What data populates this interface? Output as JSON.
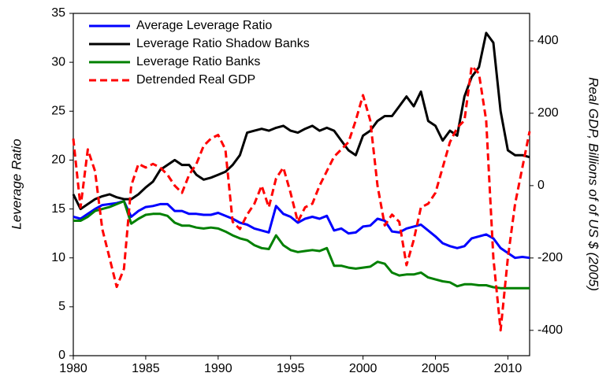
{
  "chart_data": {
    "type": "line",
    "y_label": "Leverage Ratio",
    "y2_label": "Real GDP, Billions of of US $ (2005)",
    "x": [
      1980,
      1980.5,
      1981,
      1981.5,
      1982,
      1982.5,
      1983,
      1983.5,
      1984,
      1984.5,
      1985,
      1985.5,
      1986,
      1986.5,
      1987,
      1987.5,
      1988,
      1988.5,
      1989,
      1989.5,
      1990,
      1990.5,
      1991,
      1991.5,
      1992,
      1992.5,
      1993,
      1993.5,
      1994,
      1994.5,
      1995,
      1995.5,
      1996,
      1996.5,
      1997,
      1997.5,
      1998,
      1998.5,
      1999,
      1999.5,
      2000,
      2000.5,
      2001,
      2001.5,
      2002,
      2002.5,
      2003,
      2003.5,
      2004,
      2004.5,
      2005,
      2005.5,
      2006,
      2006.5,
      2007,
      2007.5,
      2008,
      2008.5,
      2009,
      2009.5,
      2010,
      2010.5,
      2011,
      2011.5
    ],
    "xlim": [
      1980,
      2011.5
    ],
    "xticks": [
      1980,
      1985,
      1990,
      1995,
      2000,
      2005,
      2010
    ],
    "ylim": [
      0,
      35
    ],
    "yticks": [
      0,
      5,
      10,
      15,
      20,
      25,
      30,
      35
    ],
    "y2lim": [
      -470,
      476
    ],
    "y2ticks": [
      -400,
      -200,
      0,
      200,
      400
    ],
    "legend": "upper left",
    "series": [
      {
        "name": "Average Leverage Ratio",
        "color": "#0000ff",
        "linestyle": "solid",
        "values": [
          14.2,
          14.0,
          14.5,
          15.0,
          15.4,
          15.5,
          15.6,
          15.8,
          14.2,
          14.8,
          15.2,
          15.3,
          15.5,
          15.5,
          14.8,
          14.8,
          14.5,
          14.5,
          14.4,
          14.4,
          14.6,
          14.3,
          14.0,
          13.6,
          13.4,
          13.0,
          12.8,
          12.6,
          15.3,
          14.5,
          14.2,
          13.6,
          14.0,
          14.2,
          14.0,
          14.3,
          12.8,
          13.0,
          12.5,
          12.6,
          13.2,
          13.3,
          14.0,
          13.8,
          12.7,
          12.6,
          13.0,
          13.2,
          13.4,
          12.8,
          12.2,
          11.5,
          11.2,
          11.0,
          11.2,
          12.0,
          12.2,
          12.4,
          12.0,
          11.0,
          10.5,
          10.0,
          10.1,
          10.0
        ]
      },
      {
        "name": "Leverage Ratio Shadow Banks",
        "color": "#000000",
        "linestyle": "solid",
        "values": [
          16.5,
          15.0,
          15.5,
          16.0,
          16.3,
          16.5,
          16.2,
          16.0,
          16.0,
          16.5,
          17.2,
          17.8,
          19.0,
          19.5,
          20.0,
          19.5,
          19.5,
          18.5,
          18.0,
          18.2,
          18.5,
          18.8,
          19.5,
          20.5,
          22.8,
          23.0,
          23.2,
          23.0,
          23.3,
          23.5,
          23.0,
          22.8,
          23.2,
          23.5,
          23.0,
          23.3,
          23.0,
          22.0,
          21.0,
          20.5,
          22.5,
          23.0,
          24.0,
          24.5,
          24.5,
          25.5,
          26.5,
          25.5,
          27.0,
          24.0,
          23.5,
          22.0,
          23.0,
          22.5,
          26.5,
          28.5,
          29.5,
          33.0,
          32.0,
          25.0,
          21.0,
          20.5,
          20.5,
          20.3
        ]
      },
      {
        "name": "Leverage Ratio Banks",
        "color": "#008000",
        "linestyle": "solid",
        "values": [
          13.8,
          13.8,
          14.2,
          14.8,
          15.0,
          15.2,
          15.5,
          15.8,
          13.5,
          14.0,
          14.4,
          14.5,
          14.5,
          14.3,
          13.6,
          13.3,
          13.3,
          13.1,
          13.0,
          13.1,
          13.0,
          12.7,
          12.3,
          12.0,
          11.8,
          11.3,
          11.0,
          10.9,
          12.3,
          11.3,
          10.8,
          10.6,
          10.7,
          10.8,
          10.7,
          11.0,
          9.2,
          9.2,
          9.0,
          8.9,
          9.0,
          9.1,
          9.6,
          9.4,
          8.5,
          8.2,
          8.3,
          8.3,
          8.5,
          8.0,
          7.8,
          7.6,
          7.5,
          7.1,
          7.3,
          7.3,
          7.2,
          7.2,
          7.0,
          6.9,
          6.9,
          6.9,
          6.9,
          6.9
        ]
      },
      {
        "name": "Detrended Real GDP",
        "color": "#ff0000",
        "linestyle": "dashed",
        "axis": "y2",
        "values": [
          130,
          -60,
          100,
          40,
          -120,
          -200,
          -280,
          -230,
          0,
          60,
          50,
          60,
          50,
          30,
          0,
          -20,
          30,
          60,
          110,
          130,
          140,
          100,
          -100,
          -120,
          -80,
          -50,
          0,
          -60,
          20,
          50,
          -20,
          -100,
          -60,
          -50,
          0,
          40,
          80,
          100,
          120,
          180,
          250,
          180,
          0,
          -110,
          -80,
          -100,
          -220,
          -150,
          -60,
          -50,
          -20,
          50,
          120,
          160,
          180,
          330,
          310,
          180,
          -200,
          -400,
          -200,
          -50,
          50,
          150
        ]
      }
    ]
  }
}
